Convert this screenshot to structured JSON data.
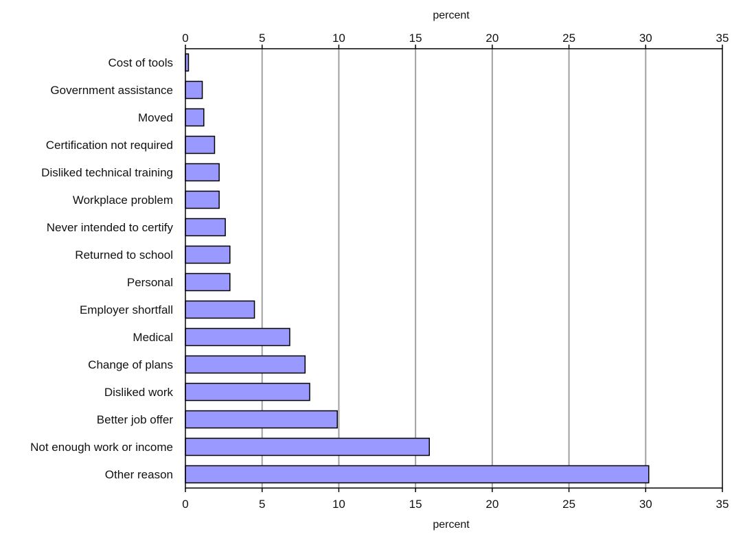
{
  "chart_data": {
    "type": "bar",
    "orientation": "horizontal",
    "xlabel_top": "percent",
    "xlabel_bottom": "percent",
    "xlim": [
      0,
      35
    ],
    "xticks": [
      0,
      5,
      10,
      15,
      20,
      25,
      30,
      35
    ],
    "grid": true,
    "bar_color": "#9999ff",
    "bar_edge_color": "#000000",
    "grid_color": "#a0a0a0",
    "categories": [
      "Cost of tools",
      "Government assistance",
      "Moved",
      "Certification not required",
      "Disliked technical training",
      "Workplace problem",
      "Never intended to certify",
      "Returned to school",
      "Personal",
      "Employer shortfall",
      "Medical",
      "Change of plans",
      "Disliked work",
      "Better job offer",
      "Not enough work or income",
      "Other reason"
    ],
    "values": [
      0.2,
      1.1,
      1.2,
      1.9,
      2.2,
      2.2,
      2.6,
      2.9,
      2.9,
      4.5,
      6.8,
      7.8,
      8.1,
      9.9,
      15.9,
      30.2
    ]
  }
}
